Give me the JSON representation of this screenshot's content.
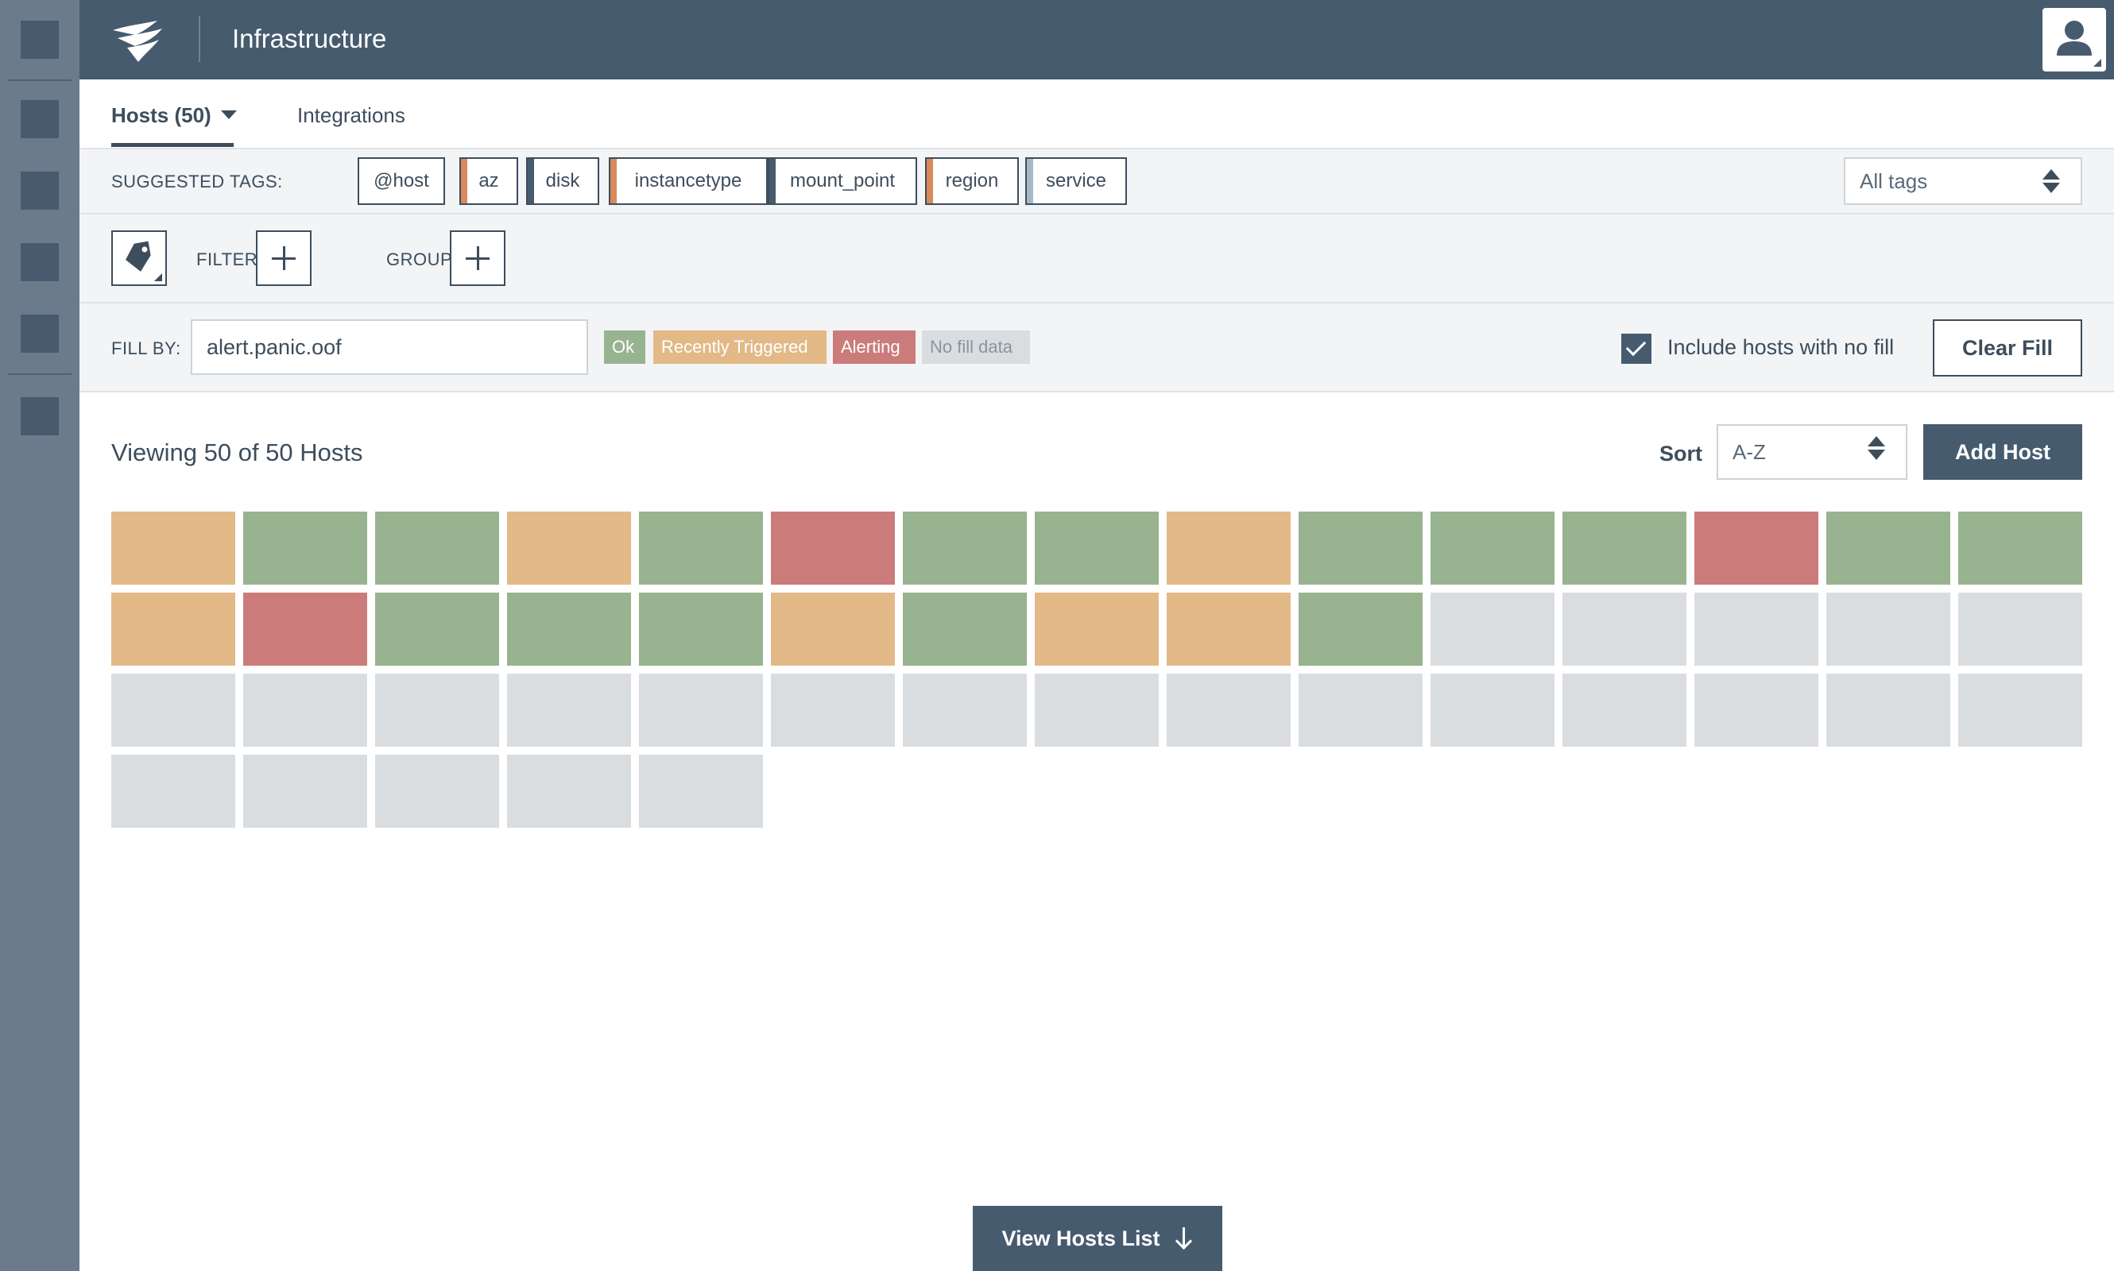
{
  "header": {
    "title": "Infrastructure"
  },
  "tabs": [
    {
      "label": "Hosts (50)",
      "active": true
    },
    {
      "label": "Integrations",
      "active": false
    }
  ],
  "suggested_tags": {
    "label": "SUGGESTED TAGS:",
    "tags": [
      {
        "label": "@host",
        "stripe": "#ffffff"
      },
      {
        "label": "az",
        "stripe": "#d98a5a"
      },
      {
        "label": "disk",
        "stripe": "#475b6f"
      },
      {
        "label": "instancetype",
        "stripe": "#d98a5a"
      },
      {
        "label": "mount_point",
        "stripe": "#475b6f"
      },
      {
        "label": "region",
        "stripe": "#d98a5a"
      },
      {
        "label": "service",
        "stripe": "#a9b8c8"
      }
    ],
    "all_tags_select": "All tags"
  },
  "filter_bar": {
    "filter_label": "FILTER BY:",
    "group_label": "GROUP BY:"
  },
  "fill_bar": {
    "label": "FILL BY:",
    "value": "alert.panic.oof",
    "legend": [
      {
        "label": "Ok",
        "color": "#98b38f",
        "text_color": "#ffffff"
      },
      {
        "label": "Recently Triggered",
        "color": "#e2b987",
        "text_color": "#ffffff"
      },
      {
        "label": "Alerting",
        "color": "#cc7b7b",
        "text_color": "#ffffff"
      },
      {
        "label": "No fill data",
        "color": "#dadde0",
        "text_color": "#8a949e"
      }
    ],
    "include_no_fill_label": "Include hosts with no fill",
    "include_no_fill_checked": true,
    "clear_button": "Clear Fill"
  },
  "main": {
    "viewing_text": "Viewing 50 of 50 Hosts",
    "sort_label": "Sort",
    "sort_value": "A-Z",
    "add_host_button": "Add Host",
    "view_list_button": "View Hosts List"
  },
  "status_colors": {
    "ok": "#98b38f",
    "triggered": "#e2b987",
    "alerting": "#cc7b7b",
    "none": "#dadde0"
  },
  "hosts": [
    "triggered",
    "ok",
    "ok",
    "triggered",
    "ok",
    "alerting",
    "ok",
    "ok",
    "triggered",
    "ok",
    "ok",
    "ok",
    "alerting",
    "ok",
    "ok",
    "triggered",
    "alerting",
    "ok",
    "ok",
    "ok",
    "triggered",
    "ok",
    "triggered",
    "triggered",
    "ok",
    "none",
    "none",
    "none",
    "none",
    "none",
    "none",
    "none",
    "none",
    "none",
    "none",
    "none",
    "none",
    "none",
    "none",
    "none",
    "none",
    "none",
    "none",
    "none",
    "none",
    "none",
    "none",
    "none",
    "none",
    "none"
  ]
}
